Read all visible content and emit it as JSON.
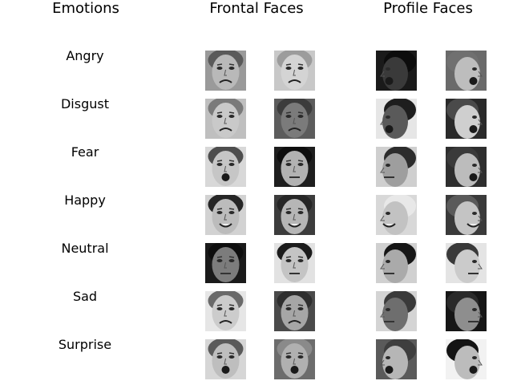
{
  "headers": {
    "emotions": "Emotions",
    "frontal": "Frontal Faces",
    "profile": "Profile Faces"
  },
  "rows": [
    {
      "emotion": "Angry",
      "faces": [
        {
          "view": "frontal",
          "bg": "#9a9a9a",
          "skin": "#b9b9b9",
          "hair": "#5a5a5a",
          "mouth": "frown"
        },
        {
          "view": "frontal",
          "bg": "#c8c8c8",
          "skin": "#d4d4d4",
          "hair": "#9c9c9c",
          "mouth": "frown"
        },
        {
          "view": "profile-left",
          "bg": "#1a1a1a",
          "skin": "#3a3a3a",
          "hair": "#0c0c0c",
          "mouth": "open"
        },
        {
          "view": "profile-right",
          "bg": "#6a6a6a",
          "skin": "#bdbdbd",
          "hair": "#707070",
          "mouth": "open"
        }
      ]
    },
    {
      "emotion": "Disgust",
      "faces": [
        {
          "view": "frontal",
          "bg": "#bfbfbf",
          "skin": "#c9c9c9",
          "hair": "#7a7a7a",
          "mouth": "frown"
        },
        {
          "view": "frontal",
          "bg": "#5c5c5c",
          "skin": "#7b7b7b",
          "hair": "#3c3c3c",
          "mouth": "frown"
        },
        {
          "view": "profile-left",
          "bg": "#e6e6e6",
          "skin": "#5a5a5a",
          "hair": "#1e1e1e",
          "mouth": "open"
        },
        {
          "view": "profile-right",
          "bg": "#2a2a2a",
          "skin": "#cfcfcf",
          "hair": "#4a4a4a",
          "mouth": "open"
        }
      ]
    },
    {
      "emotion": "Fear",
      "faces": [
        {
          "view": "frontal",
          "bg": "#d8d8d8",
          "skin": "#c6c6c6",
          "hair": "#4e4e4e",
          "mouth": "open"
        },
        {
          "view": "frontal",
          "bg": "#1e1e1e",
          "skin": "#b2b2b2",
          "hair": "#0e0e0e",
          "mouth": "neutral"
        },
        {
          "view": "profile-left",
          "bg": "#cfcfcf",
          "skin": "#9e9e9e",
          "hair": "#2c2c2c",
          "mouth": "neutral"
        },
        {
          "view": "profile-right",
          "bg": "#2e2e2e",
          "skin": "#bcbcbc",
          "hair": "#3a3a3a",
          "mouth": "open"
        }
      ]
    },
    {
      "emotion": "Happy",
      "faces": [
        {
          "view": "frontal",
          "bg": "#d2d2d2",
          "skin": "#bcbcbc",
          "hair": "#262626",
          "mouth": "smile"
        },
        {
          "view": "frontal",
          "bg": "#3c3c3c",
          "skin": "#b6b6b6",
          "hair": "#262626",
          "mouth": "smile"
        },
        {
          "view": "profile-left",
          "bg": "#d8d8d8",
          "skin": "#c2c2c2",
          "hair": "#e8e8e8",
          "mouth": "smile"
        },
        {
          "view": "profile-right",
          "bg": "#3a3a3a",
          "skin": "#c4c4c4",
          "hair": "#5a5a5a",
          "mouth": "smile"
        }
      ]
    },
    {
      "emotion": "Neutral",
      "faces": [
        {
          "view": "frontal",
          "bg": "#1a1a1a",
          "skin": "#7c7c7c",
          "hair": "#0e0e0e",
          "mouth": "neutral"
        },
        {
          "view": "frontal",
          "bg": "#e2e2e2",
          "skin": "#c4c4c4",
          "hair": "#1c1c1c",
          "mouth": "neutral"
        },
        {
          "view": "profile-left",
          "bg": "#d0d0d0",
          "skin": "#aaaaaa",
          "hair": "#161616",
          "mouth": "neutral"
        },
        {
          "view": "profile-right",
          "bg": "#e4e4e4",
          "skin": "#cbcbcb",
          "hair": "#3a3a3a",
          "mouth": "neutral"
        }
      ]
    },
    {
      "emotion": "Sad",
      "faces": [
        {
          "view": "frontal",
          "bg": "#e6e6e6",
          "skin": "#cccccc",
          "hair": "#6a6a6a",
          "mouth": "frown"
        },
        {
          "view": "frontal",
          "bg": "#4a4a4a",
          "skin": "#a6a6a6",
          "hair": "#2e2e2e",
          "mouth": "frown"
        },
        {
          "view": "profile-left",
          "bg": "#d4d4d4",
          "skin": "#6e6e6e",
          "hair": "#3a3a3a",
          "mouth": "neutral"
        },
        {
          "view": "profile-right",
          "bg": "#161616",
          "skin": "#8e8e8e",
          "hair": "#2a2a2a",
          "mouth": "neutral"
        }
      ]
    },
    {
      "emotion": "Surprise",
      "faces": [
        {
          "view": "frontal",
          "bg": "#d6d6d6",
          "skin": "#bebebe",
          "hair": "#5a5a5a",
          "mouth": "open"
        },
        {
          "view": "frontal",
          "bg": "#6c6c6c",
          "skin": "#b0b0b0",
          "hair": "#8a8a8a",
          "mouth": "open"
        },
        {
          "view": "profile-left",
          "bg": "#5a5a5a",
          "skin": "#b6b6b6",
          "hair": "#3e3e3e",
          "mouth": "open"
        },
        {
          "view": "profile-right",
          "bg": "#f2f2f2",
          "skin": "#bcbcbc",
          "hair": "#141414",
          "mouth": "open"
        }
      ]
    }
  ]
}
